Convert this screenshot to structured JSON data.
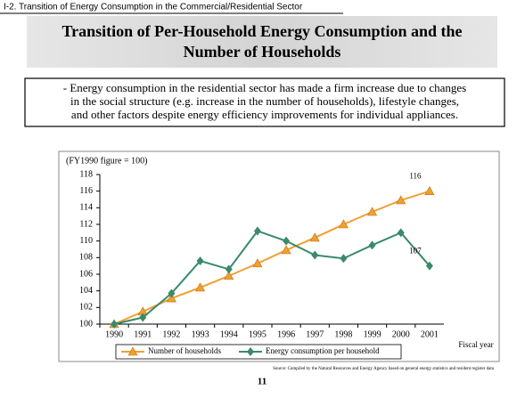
{
  "header": "I-2. Transition of Energy Consumption in the Commercial/Residential Sector",
  "title": [
    "Transition of Per-Household Energy Consumption and the",
    "Number of Households"
  ],
  "summary": [
    "- Energy consumption in the residential sector has made a firm increase due to changes",
    "in the social structure (e.g. increase in the number of households), lifestyle changes,",
    "and other factors despite energy efficiency improvements for individual appliances."
  ],
  "chart_data": {
    "type": "line",
    "y_label": "(FY1990 figure = 100)",
    "x_label": "Fiscal year",
    "categories": [
      "1990",
      "1991",
      "1992",
      "1993",
      "1994",
      "1995",
      "1996",
      "1997",
      "1998",
      "1999",
      "2000",
      "2001"
    ],
    "series": [
      {
        "name": "Number of households",
        "color": "#f0a030",
        "marker": "triangle",
        "values": [
          100,
          101.5,
          103.1,
          104.4,
          105.8,
          107.3,
          108.9,
          110.4,
          112.0,
          113.5,
          114.9,
          116
        ]
      },
      {
        "name": "Energy consumption per household",
        "color": "#3a8a6a",
        "marker": "diamond",
        "values": [
          100,
          100.8,
          103.7,
          107.6,
          106.6,
          111.2,
          110.0,
          108.3,
          107.9,
          109.5,
          111.0,
          107
        ]
      }
    ],
    "ylim": [
      100,
      118
    ],
    "yticks": [
      100,
      102,
      104,
      106,
      108,
      110,
      112,
      114,
      116,
      118
    ],
    "grid": false,
    "legend": "bottom"
  },
  "source": "Source: Compiled by the Natural Resources and Energy Agency based on general energy statistics and resident register data",
  "page_number": "11"
}
